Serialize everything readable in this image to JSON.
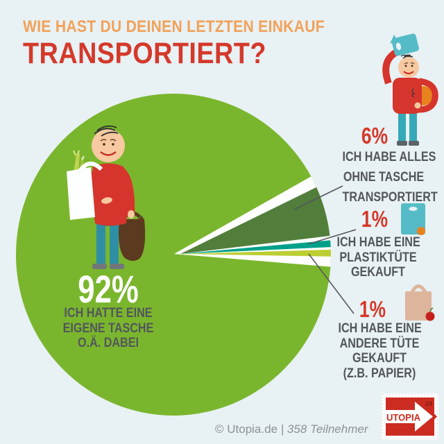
{
  "title": {
    "line1": "WIE HAST DU DEINEN LETZTEN EINKAUF",
    "line2": "TRANSPORTIERT?"
  },
  "chart_data": {
    "type": "pie",
    "title": "Wie hast du deinen letzten Einkauf transportiert?",
    "units": "percent",
    "participants": 358,
    "slices": [
      {
        "label": "ICH HATTE EINE EIGENE TASCHE O.Ä. DABEI",
        "value": 92,
        "color": "#7AB62D"
      },
      {
        "label": "ICH HABE ALLES OHNE TASCHE TRANSPORTIERT",
        "value": 6,
        "color": "#527E3B"
      },
      {
        "label": "ICH HABE EINE PLASTIKTÜTE GEKAUFT",
        "value": 1,
        "color": "#00A189"
      },
      {
        "label": "ICH HABE EINE ANDERE TÜTE GEKAUFT (Z.B. PAPIER)",
        "value": 1,
        "color": "#BCCE33"
      }
    ],
    "legend_position": "right-callouts",
    "grid": false
  },
  "callouts": {
    "main": {
      "pct": "92%",
      "lines": [
        "ICH HATTE EINE",
        "EIGENE TASCHE",
        "O.Ä. DABEI"
      ]
    },
    "none": {
      "pct": "6%",
      "lines": [
        "ICH HABE ALLES",
        "OHNE TASCHE",
        "TRANSPORTIERT"
      ]
    },
    "plastic": {
      "pct": "1%",
      "lines": [
        "ICH HABE EINE",
        "PLASTIKTÜTE",
        "GEKAUFT"
      ]
    },
    "paper": {
      "pct": "1%",
      "lines": [
        "ICH HABE EINE",
        "ANDERE TÜTE",
        "GEKAUFT",
        "(Z.B. PAPIER)"
      ]
    }
  },
  "footer": {
    "credit": "© Utopia.de",
    "divider": "|",
    "participants": "358 Teilnehmer"
  },
  "logo": {
    "text": "UTOPIA",
    "badge": "24"
  },
  "colors": {
    "background": "#E8F1F4",
    "title_orange": "#F2A158",
    "accent_red": "#D4392B",
    "text_gray": "#53565B",
    "footer_gray": "#8E9193",
    "stamp_red": "#CB2B20",
    "pie_green": "#7AB62D",
    "pie_dark_green": "#527E3B",
    "pie_teal": "#00A189",
    "pie_yellow_green": "#BCCE33"
  }
}
